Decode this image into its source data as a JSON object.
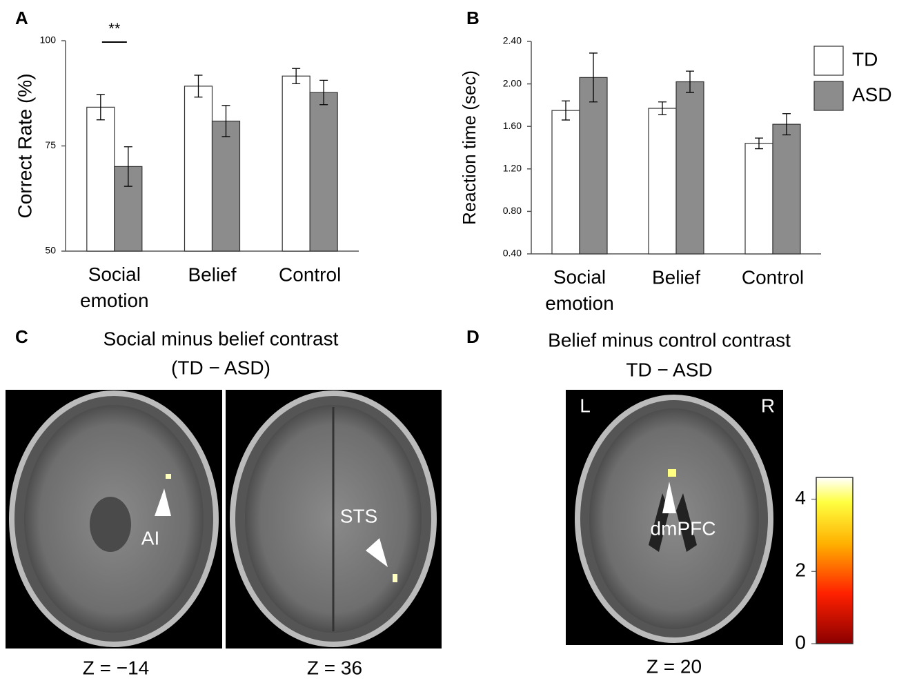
{
  "chart_data": [
    {
      "type": "bar",
      "panel_label": "A",
      "ylabel": "Correct Rate (%)",
      "categories": [
        "Social emotion",
        "Belief",
        "Control"
      ],
      "series": [
        {
          "name": "TD",
          "color": "#ffffff",
          "values": [
            84.2,
            89.2,
            91.6
          ],
          "errors": [
            3.0,
            2.6,
            1.8
          ]
        },
        {
          "name": "ASD",
          "color": "#8c8c8c",
          "values": [
            70.1,
            80.9,
            87.7
          ],
          "errors": [
            4.7,
            3.7,
            2.9
          ]
        }
      ],
      "ylim": [
        50,
        100
      ],
      "yticks": [
        50,
        75,
        100
      ],
      "annotations": [
        {
          "text": "**",
          "category": 0
        }
      ]
    },
    {
      "type": "bar",
      "panel_label": "B",
      "ylabel": "Reaction time (sec)",
      "categories": [
        "Social emotion",
        "Belief",
        "Control"
      ],
      "series": [
        {
          "name": "TD",
          "color": "#ffffff",
          "values": [
            1.75,
            1.77,
            1.44
          ],
          "errors": [
            0.09,
            0.06,
            0.05
          ]
        },
        {
          "name": "ASD",
          "color": "#8c8c8c",
          "values": [
            2.06,
            2.02,
            1.62
          ],
          "errors": [
            0.23,
            0.1,
            0.1
          ]
        }
      ],
      "ylim": [
        0.4,
        2.4
      ],
      "yticks": [
        {
          "value": 0.4,
          "label": "0.40"
        },
        {
          "value": 0.8,
          "label": "0.80"
        },
        {
          "value": 1.2,
          "label": "1.20"
        },
        {
          "value": 1.6,
          "label": "1.60"
        },
        {
          "value": 2.0,
          "label": "2.00"
        },
        {
          "value": 2.4,
          "label": "2.40"
        }
      ],
      "legend": "right"
    }
  ],
  "panels": [
    {
      "label": "C",
      "title": [
        "Social minus belief contrast",
        "(TD − ASD)"
      ],
      "images": [
        {
          "caption": "Z = −14",
          "annotation": "AI"
        },
        {
          "caption": "Z = 36",
          "annotation": "STS"
        }
      ]
    },
    {
      "label": "D",
      "title": [
        "Belief minus control contrast",
        "TD − ASD"
      ],
      "images": [
        {
          "caption": "Z = 20",
          "annotation": "dmPFC",
          "left": "L",
          "right": "R"
        }
      ],
      "colorbar": {
        "clim": [
          0,
          4.6
        ],
        "ticks": [
          0,
          2,
          4
        ]
      }
    }
  ]
}
